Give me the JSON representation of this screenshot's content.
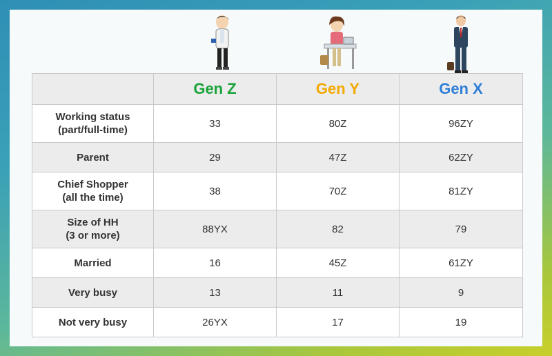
{
  "table": {
    "headers": [
      {
        "label": "",
        "color": "#333333"
      },
      {
        "label": "Gen Z",
        "color": "#1aa33a"
      },
      {
        "label": "Gen Y",
        "color": "#f2a900"
      },
      {
        "label": "Gen X",
        "color": "#2f7fd8"
      }
    ],
    "rows": [
      {
        "label_line1": "Working status",
        "label_line2": "(part/full-time)",
        "values": [
          "33",
          "80Z",
          "96ZY"
        ]
      },
      {
        "label_line1": "Parent",
        "label_line2": "",
        "values": [
          "29",
          "47Z",
          "62ZY"
        ]
      },
      {
        "label_line1": "Chief Shopper",
        "label_line2": "(all the time)",
        "values": [
          "38",
          "70Z",
          "81ZY"
        ]
      },
      {
        "label_line1": "Size of HH",
        "label_line2": "(3 or more)",
        "values": [
          "88YX",
          "82",
          "79"
        ]
      },
      {
        "label_line1": "Married",
        "label_line2": "",
        "values": [
          "16",
          "45Z",
          "61ZY"
        ]
      },
      {
        "label_line1": "Very busy",
        "label_line2": "",
        "values": [
          "13",
          "11",
          "9"
        ]
      },
      {
        "label_line1": "Not very busy",
        "label_line2": "",
        "values": [
          "26YX",
          "17",
          "19"
        ]
      }
    ]
  },
  "illustrations": [
    "gen-z-figure-icon",
    "gen-y-figure-icon",
    "gen-x-figure-icon"
  ]
}
